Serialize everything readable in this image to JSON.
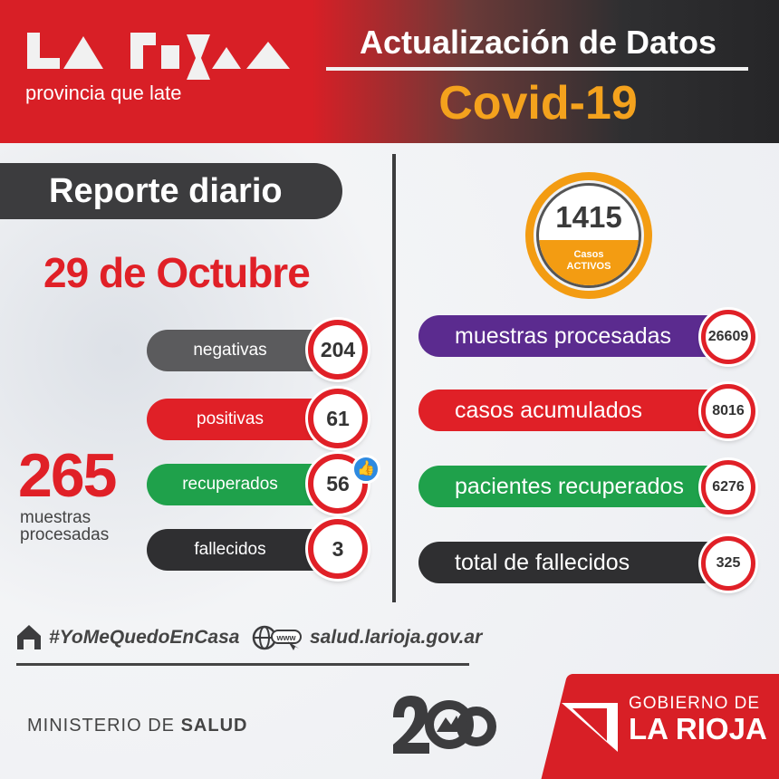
{
  "header": {
    "logo_tagline": "provincia que late",
    "update_title": "Actualización de Datos",
    "covid_title": "Covid-19"
  },
  "report": {
    "title": "Reporte diario",
    "date": "29 de Octubre",
    "rows": [
      {
        "label": "negativas",
        "value": "204",
        "color": "#5b5b5d"
      },
      {
        "label": "positivas",
        "value": "61",
        "color": "#e02027"
      },
      {
        "label": "recuperados",
        "value": "56",
        "color": "#1fa14b"
      },
      {
        "label": "fallecidos",
        "value": "3",
        "color": "#2f2f31"
      }
    ],
    "total_value": "265",
    "total_label_line1": "muestras",
    "total_label_line2": "procesadas"
  },
  "active": {
    "value": "1415",
    "label_line1": "Casos",
    "label_line2": "ACTIVOS"
  },
  "summary": [
    {
      "label": "muestras procesadas",
      "value": "26609",
      "color": "#5b2b8f"
    },
    {
      "label": "casos acumulados",
      "value": "8016",
      "color": "#e02027"
    },
    {
      "label": "pacientes recuperados",
      "value": "6276",
      "color": "#1fa14b"
    },
    {
      "label": "total de fallecidos",
      "value": "325",
      "color": "#2f2f31"
    }
  ],
  "footer": {
    "hashtag": "#YoMeQuedoEnCasa",
    "website": "salud.larioja.gov.ar",
    "web_icon_text": "www",
    "ministry_prefix": "MINISTERIO DE ",
    "ministry_bold": "SALUD",
    "gov_line1": "GOBIERNO DE",
    "gov_line2": "LA RIOJA"
  }
}
